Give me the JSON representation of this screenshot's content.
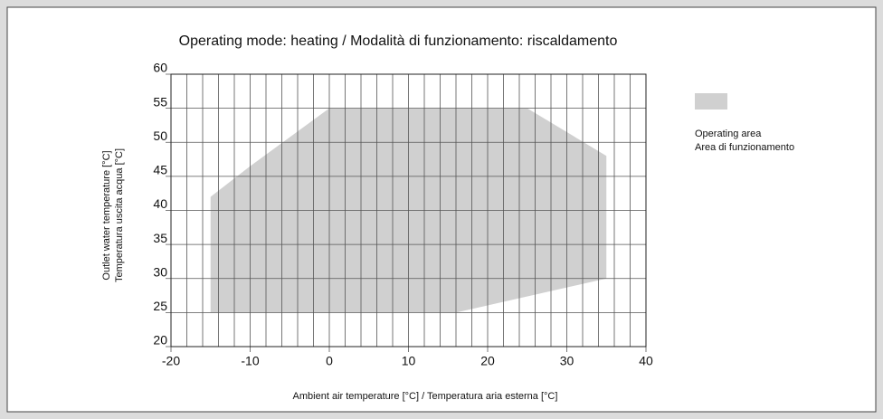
{
  "chart_data": {
    "type": "area",
    "title": "Operating mode: heating / Modalità di funzionamento: riscaldamento",
    "xlabel": "Ambient air temperature [°C] / Temperatura aria esterna [°C]",
    "ylabel": [
      "Outlet water temperature [°C]",
      "Temperatura uscita acqua [°C]"
    ],
    "series": [
      {
        "name": [
          "Operating area",
          "Area di funzionamento"
        ],
        "color": "#d0d0d0",
        "x": [
          -15,
          -15,
          -10,
          0,
          25,
          35,
          35,
          16
        ],
        "values": [
          25,
          42,
          46.5,
          55,
          55,
          48,
          30,
          25
        ]
      }
    ],
    "xlim": [
      -20,
      40
    ],
    "xticks": [
      -20,
      -10,
      0,
      10,
      20,
      30,
      40
    ],
    "x_minor_ticks": [
      -18,
      -16,
      -14,
      -12,
      -8,
      -6,
      -4,
      -2,
      2,
      4,
      6,
      8,
      12,
      14,
      16,
      18,
      22,
      24,
      26,
      28,
      32,
      34,
      36,
      38
    ],
    "ylim": [
      20,
      60
    ],
    "yticks": [
      20,
      25,
      30,
      35,
      40,
      45,
      50,
      55,
      60
    ],
    "grid": true,
    "legend": "right"
  }
}
